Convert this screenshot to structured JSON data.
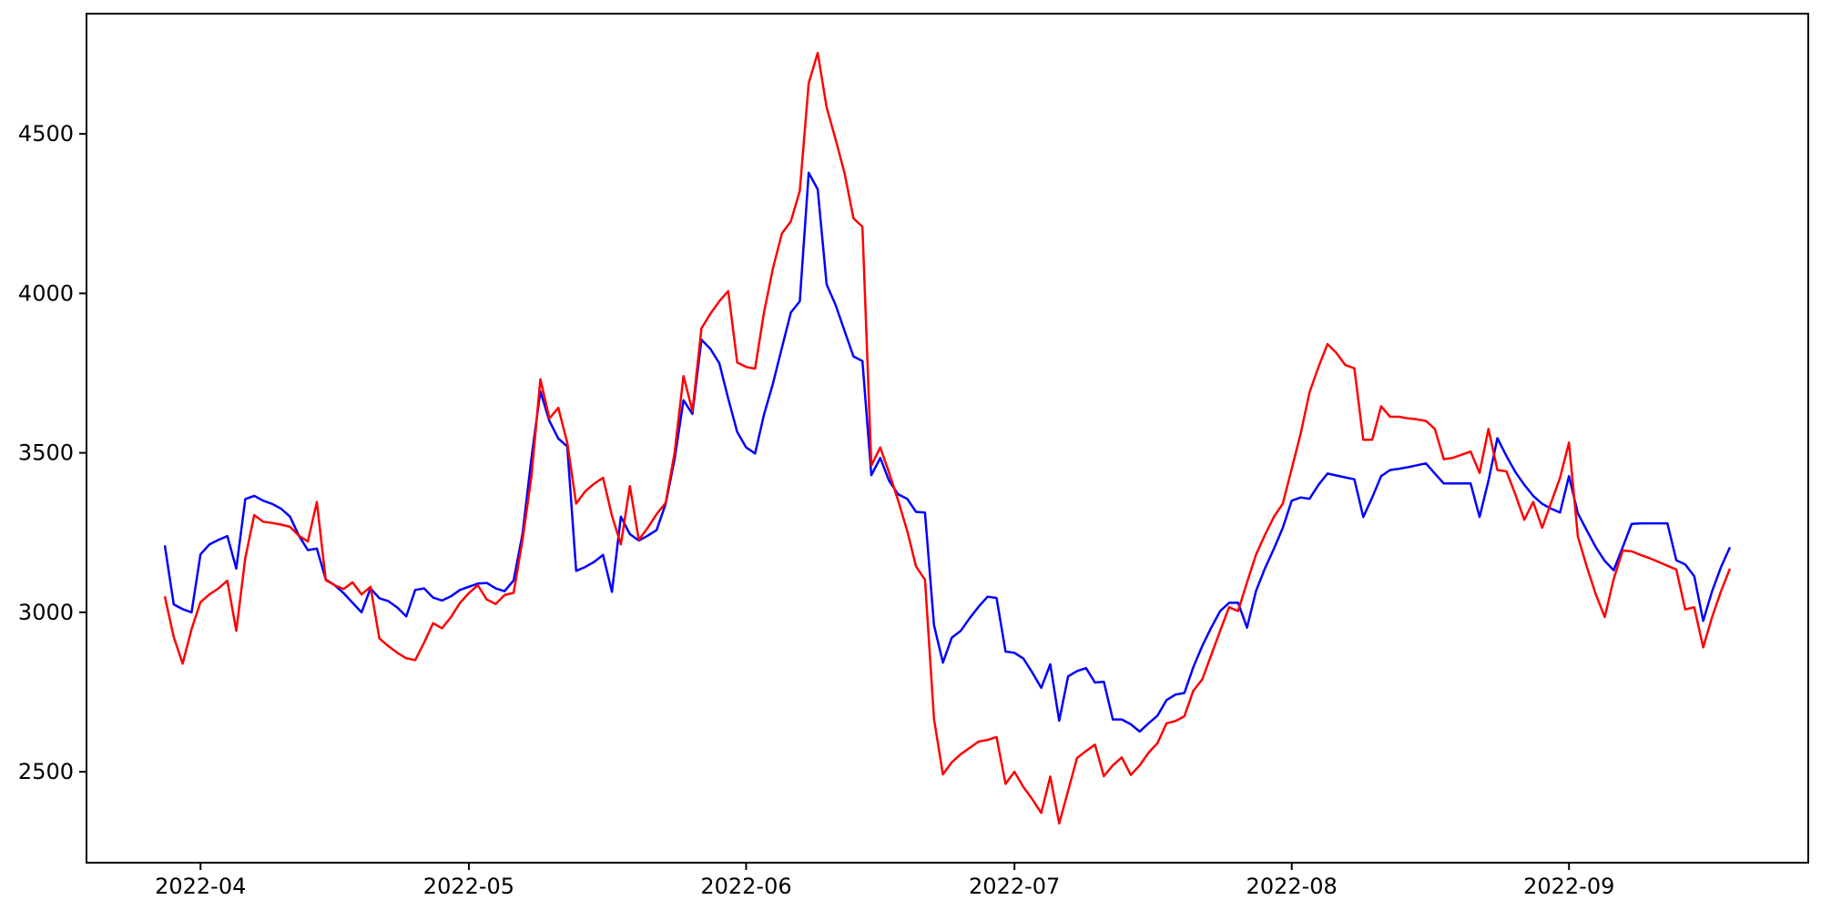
{
  "figure": {
    "background_color": "#ffffff",
    "title": ""
  },
  "chart_data": {
    "type": "line",
    "title": "",
    "xlabel": "",
    "ylabel": "",
    "grid": false,
    "legend_position": "none",
    "x_unit": "date",
    "start_date": "2022-03-28",
    "end_date": "2022-09-19",
    "frequency": "daily",
    "n_points": 176,
    "x_tick_labels": [
      "2022-04",
      "2022-05",
      "2022-06",
      "2022-07",
      "2022-08",
      "2022-09"
    ],
    "x_tick_indices": [
      4,
      34,
      65,
      95,
      126,
      157
    ],
    "xlim_indices": [
      -8.75,
      183.75
    ],
    "y_tick_labels": [
      "2500",
      "3000",
      "3500",
      "4000",
      "4500"
    ],
    "y_ticks": [
      2500,
      3000,
      3500,
      4000,
      4500
    ],
    "ylim": [
      2215,
      4877
    ],
    "axis_color": "#000000",
    "series": [
      {
        "name": "series-blue",
        "color": "#0000ff",
        "values": [
          3210,
          3025,
          3010,
          3000,
          3182,
          3213,
          3227,
          3239,
          3137,
          3355,
          3365,
          3350,
          3340,
          3325,
          3300,
          3240,
          3195,
          3200,
          3103,
          3085,
          3060,
          3030,
          3000,
          3075,
          3044,
          3035,
          3015,
          2987,
          3070,
          3075,
          3046,
          3037,
          3050,
          3070,
          3080,
          3090,
          3092,
          3075,
          3066,
          3100,
          3246,
          3484,
          3693,
          3600,
          3545,
          3520,
          3130,
          3142,
          3158,
          3180,
          3064,
          3300,
          3245,
          3225,
          3240,
          3258,
          3340,
          3480,
          3665,
          3622,
          3855,
          3826,
          3781,
          3670,
          3565,
          3517,
          3498,
          3620,
          3717,
          3830,
          3940,
          3975,
          4378,
          4326,
          4028,
          3964,
          3883,
          3802,
          3788,
          3430,
          3484,
          3412,
          3370,
          3356,
          3315,
          3313,
          2960,
          2842,
          2921,
          2942,
          2982,
          3018,
          3049,
          3045,
          2877,
          2873,
          2855,
          2811,
          2763,
          2837,
          2660,
          2799,
          2816,
          2825,
          2780,
          2782,
          2664,
          2664,
          2649,
          2626,
          2652,
          2676,
          2725,
          2742,
          2747,
          2828,
          2895,
          2952,
          3004,
          3030,
          3030,
          2952,
          3066,
          3137,
          3199,
          3265,
          3350,
          3360,
          3356,
          3400,
          3435,
          3429,
          3423,
          3417,
          3299,
          3360,
          3427,
          3446,
          3450,
          3455,
          3461,
          3467,
          3435,
          3404,
          3404,
          3404,
          3404,
          3299,
          3413,
          3546,
          3490,
          3440,
          3400,
          3365,
          3340,
          3325,
          3313,
          3427,
          3310,
          3256,
          3204,
          3161,
          3132,
          3204,
          3277,
          3279,
          3279,
          3279,
          3279,
          3163,
          3150,
          3113,
          2973,
          3066,
          3142,
          3204
        ]
      },
      {
        "name": "series-red",
        "color": "#ff0000",
        "values": [
          3050,
          2923,
          2839,
          2947,
          3032,
          3056,
          3075,
          3099,
          2942,
          3170,
          3305,
          3284,
          3280,
          3275,
          3268,
          3240,
          3222,
          3346,
          3101,
          3085,
          3073,
          3094,
          3056,
          3080,
          2918,
          2894,
          2873,
          2856,
          2850,
          2905,
          2966,
          2950,
          2985,
          3029,
          3060,
          3085,
          3040,
          3026,
          3054,
          3061,
          3227,
          3427,
          3731,
          3608,
          3641,
          3532,
          3341,
          3379,
          3403,
          3422,
          3303,
          3213,
          3396,
          3227,
          3265,
          3308,
          3343,
          3500,
          3741,
          3631,
          3890,
          3936,
          3975,
          4007,
          3783,
          3769,
          3764,
          3940,
          4078,
          4188,
          4226,
          4321,
          4659,
          4754,
          4583,
          4483,
          4378,
          4235,
          4209,
          3460,
          3517,
          3437,
          3350,
          3256,
          3144,
          3102,
          2666,
          2492,
          2530,
          2555,
          2575,
          2595,
          2600,
          2609,
          2462,
          2500,
          2452,
          2414,
          2371,
          2485,
          2338,
          2440,
          2543,
          2565,
          2585,
          2486,
          2520,
          2545,
          2490,
          2520,
          2560,
          2590,
          2652,
          2659,
          2674,
          2754,
          2790,
          2866,
          2942,
          3016,
          3004,
          3094,
          3180,
          3242,
          3299,
          3341,
          3450,
          3560,
          3690,
          3770,
          3841,
          3813,
          3775,
          3765,
          3541,
          3541,
          3646,
          3613,
          3613,
          3608,
          3605,
          3600,
          3575,
          3480,
          3484,
          3494,
          3504,
          3437,
          3575,
          3446,
          3442,
          3370,
          3290,
          3346,
          3265,
          3344,
          3422,
          3532,
          3237,
          3142,
          3056,
          2985,
          3104,
          3194,
          3191,
          3180,
          3170,
          3158,
          3146,
          3134,
          3009,
          3016,
          2890,
          2985,
          3066,
          3137
        ]
      }
    ]
  }
}
